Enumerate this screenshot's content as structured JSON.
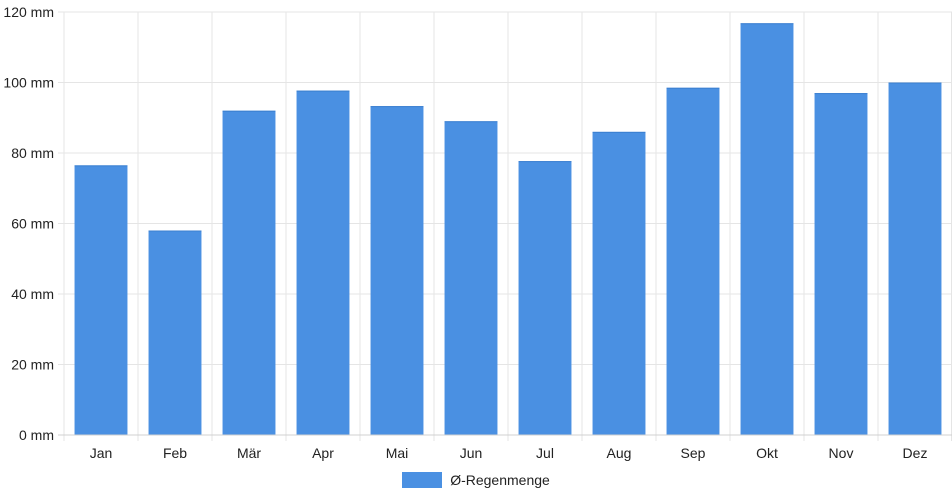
{
  "chart_data": {
    "type": "bar",
    "categories": [
      "Jan",
      "Feb",
      "Mär",
      "Apr",
      "Mai",
      "Jun",
      "Jul",
      "Aug",
      "Sep",
      "Okt",
      "Nov",
      "Dez"
    ],
    "series": [
      {
        "name": "Ø-Regenmenge",
        "values": [
          76.5,
          58,
          92,
          97.7,
          93.3,
          89,
          77.7,
          86,
          98.5,
          116.8,
          97,
          100
        ],
        "color": "#4a90e2"
      }
    ],
    "y_unit": "mm",
    "ylim": [
      0,
      120
    ],
    "y_ticks": [
      0,
      20,
      40,
      60,
      80,
      100,
      120
    ],
    "y_tick_labels": [
      "0 mm",
      "20 mm",
      "40 mm",
      "60 mm",
      "80 mm",
      "100 mm",
      "120 mm"
    ],
    "grid": true,
    "legend_position": "bottom"
  }
}
